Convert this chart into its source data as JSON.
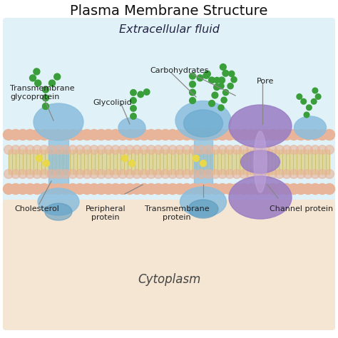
{
  "title": "Plasma Membrane Structure",
  "extracellular_label": "Extracellular fluid",
  "cytoplasm_label": "Cytoplasm",
  "bg_top_color": "#e0f2f8",
  "bg_bottom_color": "#f5e6d3",
  "bg_white": "#ffffff",
  "phospholipid_head_color": "#e8b49a",
  "tail_color": "#d4c87a",
  "blue_protein_color": "#8bbedd",
  "blue_protein_dark": "#5a9abf",
  "channel_protein_color": "#9b7fc4",
  "glycan_color": "#3a9e3a",
  "label_color": "#222222",
  "line_color": "#888888"
}
